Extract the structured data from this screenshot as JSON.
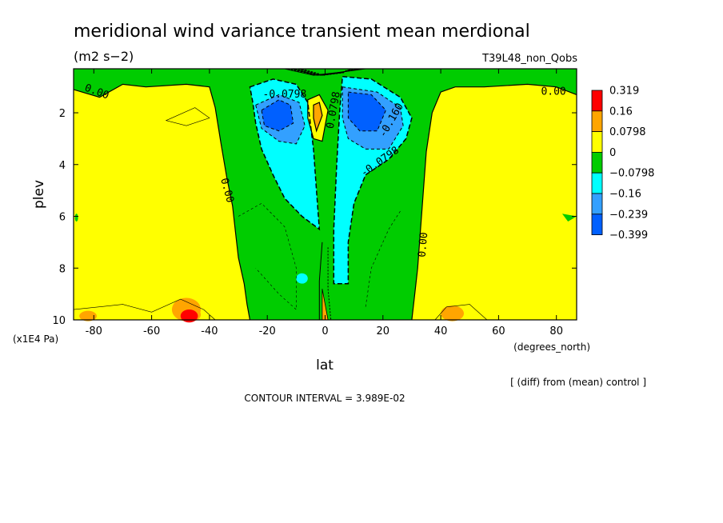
{
  "chart_data": {
    "type": "heatmap",
    "title": "meridional wind variance transient mean merdional",
    "subtitle": "(m2 s−2)",
    "run_label": "T39L48_non_Qobs",
    "xlabel": "lat",
    "x_units": "(degrees_north)",
    "ylabel": "plev",
    "y_units": "(x1E4 Pa)",
    "xlim": [
      -87,
      87
    ],
    "ylim": [
      10,
      0.3
    ],
    "x_ticks": [
      -80,
      -60,
      -40,
      -20,
      0,
      20,
      40,
      60,
      80
    ],
    "y_ticks": [
      2,
      4,
      6,
      8,
      10
    ],
    "diff_note": "[ (diff) from (mean) control ]",
    "contour_interval_text": "CONTOUR INTERVAL = 3.989E-02",
    "legend": {
      "placement": "right",
      "levels": [
        "0.319",
        "0.16",
        "0.0798",
        "0",
        "−0.0798",
        "−0.16",
        "−0.239",
        "−0.399"
      ],
      "colors": [
        "#ff0000",
        "#ffa500",
        "#ffff00",
        "#00cc00",
        "#00ffff",
        "#33a0ff",
        "#0060ff"
      ]
    },
    "contour_labels": [
      {
        "text": "0.00",
        "lat": -79,
        "p": 1.2,
        "angle": 20
      },
      {
        "text": "0.00",
        "lat": 79,
        "p": 1.2,
        "angle": 0
      },
      {
        "text": "0.00",
        "lat": -34,
        "p": 5.0,
        "angle": 75
      },
      {
        "text": "0.00",
        "lat": 34,
        "p": 7.1,
        "angle": -85
      },
      {
        "text": "-0.0798",
        "lat": -14,
        "p": 1.3,
        "angle": 0
      },
      {
        "text": "0.0798",
        "lat": 3,
        "p": 1.9,
        "angle": -80
      },
      {
        "text": "-0.160",
        "lat": 23,
        "p": 2.3,
        "angle": -60
      },
      {
        "text": "-0.0798",
        "lat": 19,
        "p": 3.9,
        "angle": -35
      }
    ]
  }
}
